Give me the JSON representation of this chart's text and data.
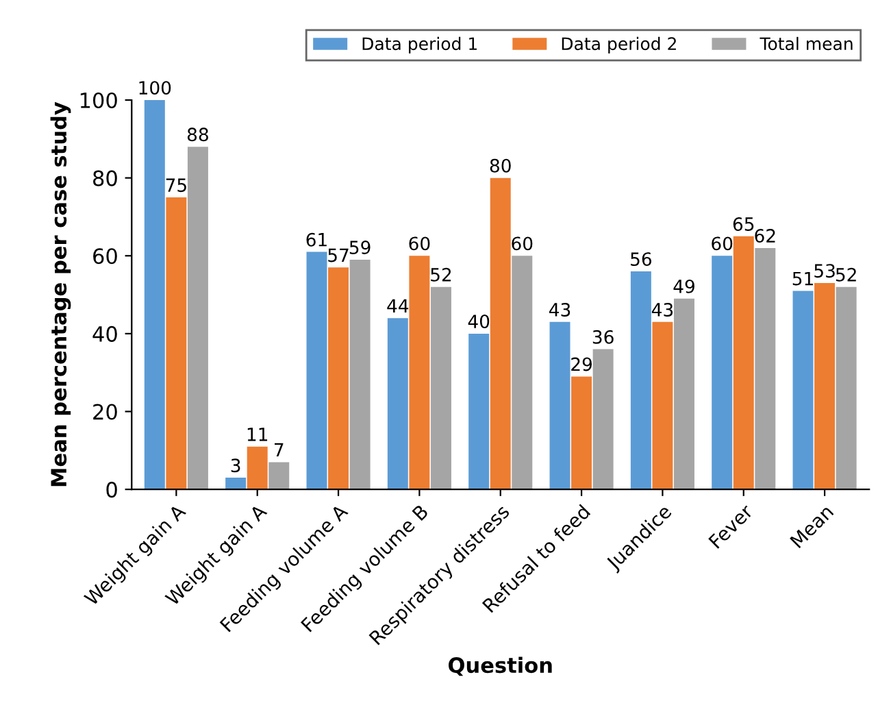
{
  "chart_data": {
    "type": "bar",
    "xlabel": "Question",
    "ylabel": "Mean percentage per case study",
    "categories": [
      "Weight gain A",
      "Weight gain A",
      "Feeding volume A",
      "Feeding volume B",
      "Respiratory distress",
      "Refusal to feed",
      "Juandice",
      "Fever",
      "Mean"
    ],
    "series": [
      {
        "name": "Data period 1",
        "color": "#5b9bd5",
        "values": [
          100,
          3,
          61,
          44,
          40,
          43,
          56,
          60,
          51
        ]
      },
      {
        "name": "Data period 2",
        "color": "#ed7d31",
        "values": [
          75,
          11,
          57,
          60,
          80,
          29,
          43,
          65,
          53
        ]
      },
      {
        "name": "Total mean",
        "color": "#a5a5a5",
        "values": [
          88,
          7,
          59,
          52,
          60,
          36,
          49,
          62,
          52
        ]
      }
    ],
    "ylim": [
      0,
      100
    ],
    "yticks": [
      0,
      20,
      40,
      60,
      80,
      100
    ],
    "grid": false,
    "legend": "top right",
    "data_labels": true
  }
}
